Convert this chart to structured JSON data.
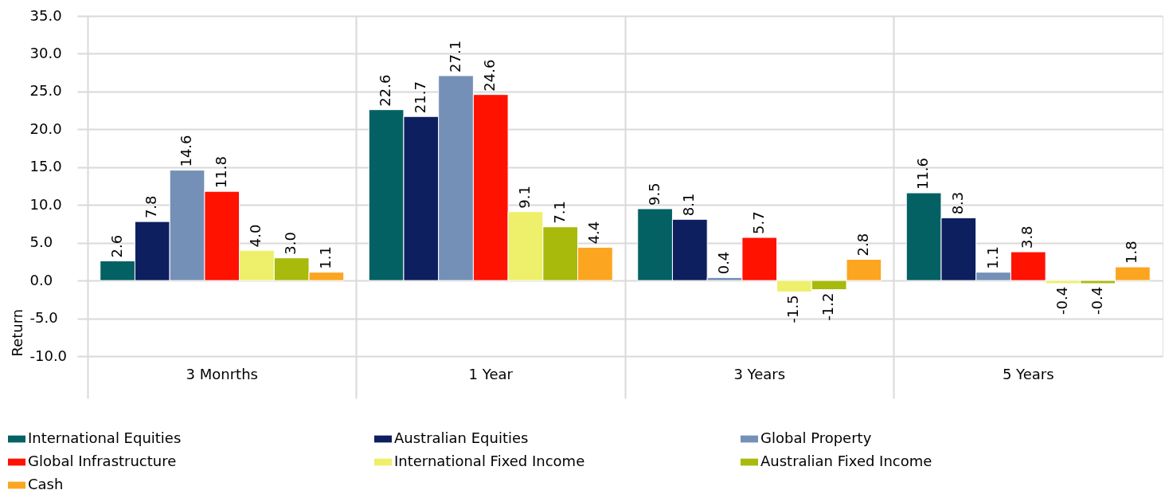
{
  "chart_data": {
    "type": "bar",
    "ylabel": "Return",
    "categories": [
      "3 Monrths",
      "1 Year",
      "3 Years",
      "5 Years"
    ],
    "series": [
      {
        "name": "International Equities",
        "color": "#046163",
        "values": [
          2.6,
          22.6,
          9.5,
          11.6
        ],
        "value_labels": [
          "2.6",
          "22.6",
          "9.5",
          "11.6"
        ]
      },
      {
        "name": "Australian Equities",
        "color": "#0d1f5f",
        "values": [
          7.8,
          21.7,
          8.1,
          8.3
        ],
        "value_labels": [
          "7.8",
          "21.7",
          "8.1",
          "8.3"
        ]
      },
      {
        "name": "Global Property",
        "color": "#7490b7",
        "values": [
          14.6,
          27.1,
          0.4,
          1.1
        ],
        "value_labels": [
          "14.6",
          "27.1",
          "0.4",
          "1.1"
        ]
      },
      {
        "name": "Global Infrastructure",
        "color": "#ff1200",
        "values": [
          11.8,
          24.6,
          5.7,
          3.8
        ],
        "value_labels": [
          "11.8",
          "24.6",
          "5.7",
          "3.8"
        ]
      },
      {
        "name": "International Fixed Income",
        "color": "#eeef6a",
        "values": [
          4.0,
          9.1,
          -1.5,
          -0.4
        ],
        "value_labels": [
          "4.0",
          "9.1",
          "-1.5",
          "-0.4"
        ]
      },
      {
        "name": "Australian Fixed Income",
        "color": "#a8ba0c",
        "values": [
          3.0,
          7.1,
          -1.2,
          -0.4
        ],
        "value_labels": [
          "3.0",
          "7.1",
          "-1.2",
          "-0.4"
        ]
      },
      {
        "name": "Cash",
        "color": "#fca520",
        "values": [
          1.1,
          4.4,
          2.8,
          1.8
        ],
        "value_labels": [
          "1.1",
          "4.4",
          "2.8",
          "1.8"
        ]
      }
    ],
    "ylim": [
      -10,
      35
    ],
    "yticks": [
      {
        "value": -10,
        "label": "-10.0"
      },
      {
        "value": -5,
        "label": "-5.0"
      },
      {
        "value": 0,
        "label": "0.0"
      },
      {
        "value": 5,
        "label": "5.0"
      },
      {
        "value": 10,
        "label": "10.0"
      },
      {
        "value": 15,
        "label": "15.0"
      },
      {
        "value": 20,
        "label": "20.0"
      },
      {
        "value": 25,
        "label": "25.0"
      },
      {
        "value": 30,
        "label": "30.0"
      },
      {
        "value": 35,
        "label": "35.0"
      }
    ],
    "grid": true,
    "legend": "bottom"
  }
}
